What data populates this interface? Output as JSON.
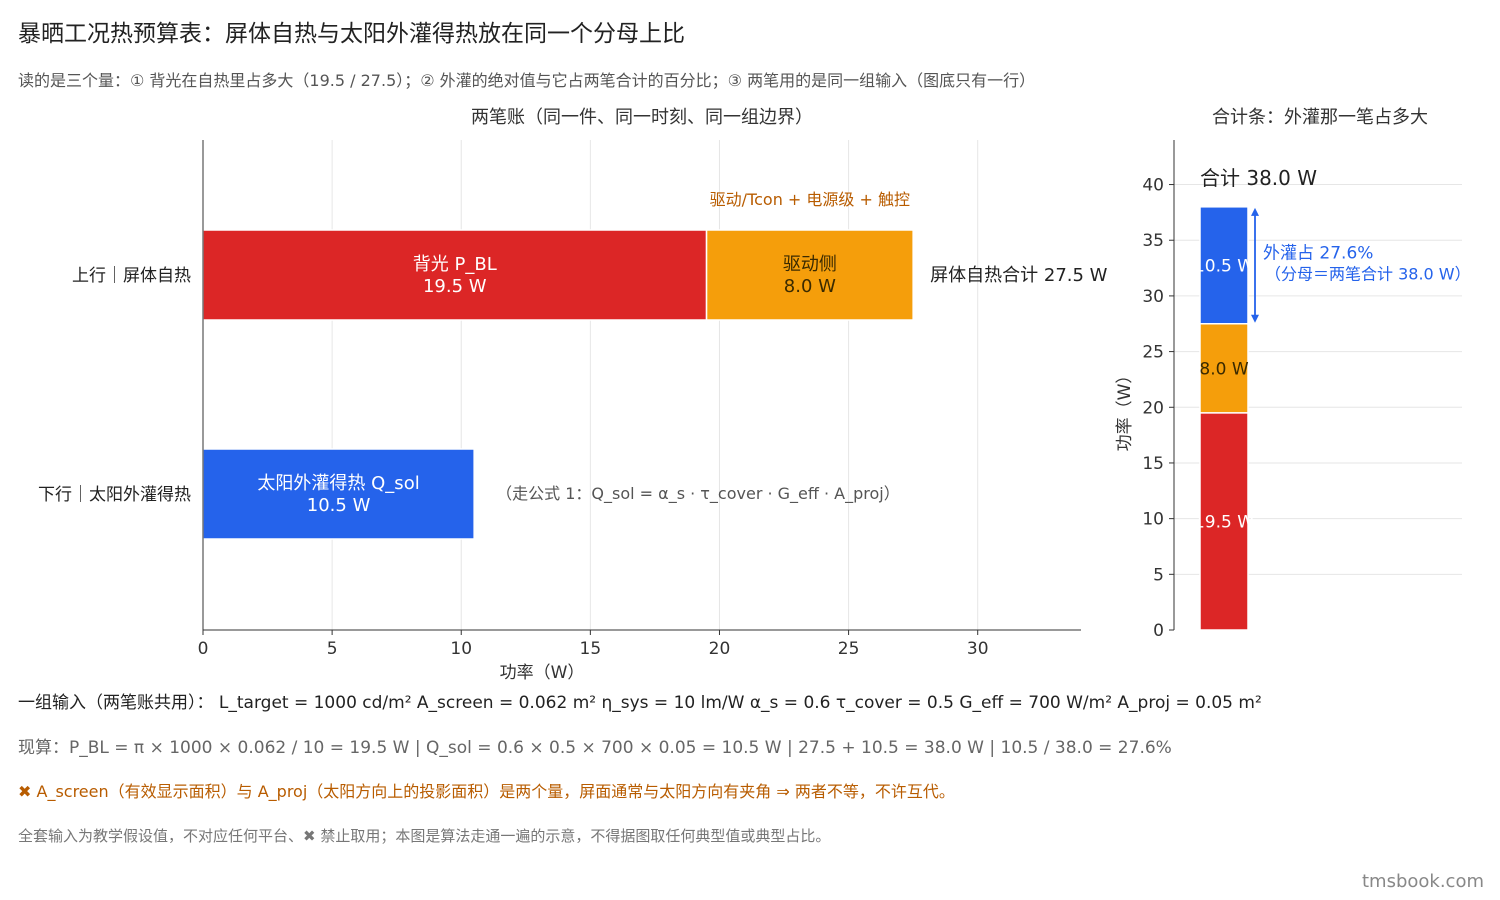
{
  "title": "暴晒工况热预算表：屏体自热与太阳外灌得热放在同一个分母上比",
  "subtitle": "读的是三个量：① 背光在自热里占多大（19.5 / 27.5）；② 外灌的绝对值与它占两笔合计的百分比；③ 两笔用的是同一组输入（图底只有一行）",
  "chart_data": [
    {
      "type": "bar",
      "orientation": "horizontal",
      "stacked": true,
      "title": "两笔账（同一件、同一时刻、同一组边界）",
      "xlabel": "功率（W）",
      "xlim": [
        0,
        34
      ],
      "xticks": [
        0,
        5,
        10,
        15,
        20,
        25,
        30
      ],
      "grid": true,
      "categories": [
        "上行｜屏体自热",
        "下行｜太阳外灌得热"
      ],
      "segments": [
        {
          "row": 0,
          "name": "背光 P_BL",
          "value": 19.5,
          "value_label": "19.5 W",
          "color": "#dc2626"
        },
        {
          "row": 0,
          "name": "驱动侧",
          "value": 8.0,
          "value_label": "8.0 W",
          "color": "#f59e0b"
        },
        {
          "row": 1,
          "name": "太阳外灌得热 Q_sol",
          "value": 10.5,
          "value_label": "10.5 W",
          "color": "#2563eb"
        }
      ],
      "annotations": {
        "driver_detail": "驱动/Tcon + 电源级 + 触控",
        "row0_total": "屏体自热合计 27.5 W",
        "row1_formula": "（走公式 1：Q_sol = α_s · τ_cover · G_eff · A_proj）"
      }
    },
    {
      "type": "bar",
      "stacked": true,
      "title": "合计条：外灌那一笔占多大",
      "ylabel": "功率（W）",
      "ylim": [
        0,
        44
      ],
      "yticks": [
        0,
        5,
        10,
        15,
        20,
        25,
        30,
        35,
        40
      ],
      "grid": true,
      "segments": [
        {
          "value": 19.5,
          "label": "19.5 W",
          "color": "#dc2626"
        },
        {
          "value": 8.0,
          "label": "8.0 W",
          "color": "#f59e0b"
        },
        {
          "value": 10.5,
          "label": "10.5 W",
          "color": "#2563eb"
        }
      ],
      "total_label": "合计 38.0 W",
      "share_line1": "外灌占 27.6%",
      "share_line2": "（分母＝两笔合计 38.0 W）"
    }
  ],
  "notes": {
    "inputs": "一组输入（两笔账共用）：  L_target = 1000 cd/m²    A_screen = 0.062 m²    η_sys = 10 lm/W    α_s = 0.6    τ_cover = 0.5    G_eff = 700 W/m²    A_proj = 0.05 m²",
    "calc": "现算：P_BL = π × 1000 × 0.062 / 10 = 19.5 W    |    Q_sol = 0.6 × 0.5 × 700 × 0.05 = 10.5 W    |    27.5 + 10.5 = 38.0 W    |    10.5 / 38.0 = 27.6%",
    "warning": "✖ A_screen（有效显示面积）与 A_proj（太阳方向上的投影面积）是两个量，屏面通常与太阳方向有夹角 ⇒ 两者不等，不许互代。",
    "disclaimer": "全套输入为教学假设值，不对应任何平台、✖ 禁止取用；本图是算法走通一遍的示意，不得据图取任何典型值或典型占比。"
  },
  "watermark": "tmsbook.com"
}
